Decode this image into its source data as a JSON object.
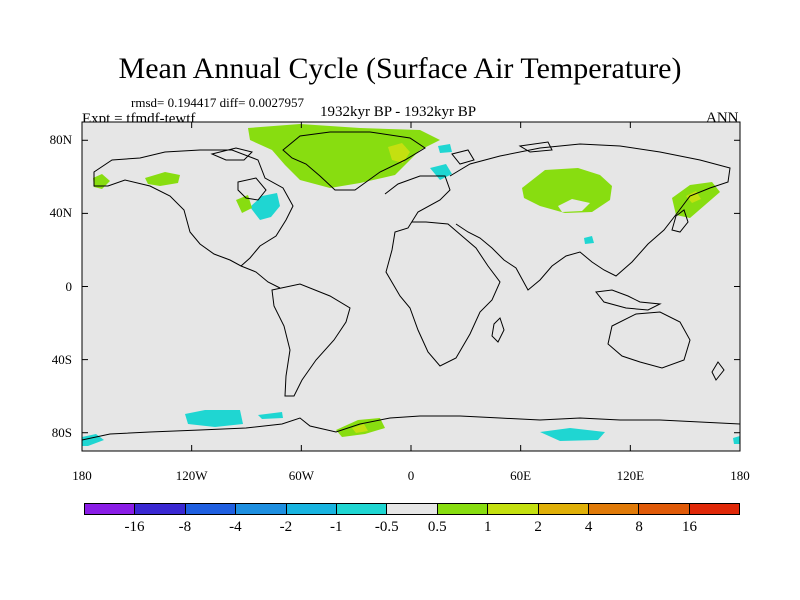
{
  "chart_data": {
    "type": "map",
    "title": "Mean Annual Cycle (Surface Air Temperature)",
    "stats": "rmsd= 0.194417 diff= 0.0027957",
    "experiment": "Expt = tfmdf-tewtf",
    "period": "1932kyr BP - 1932kyr BP",
    "season": "ANN",
    "x_ticks": [
      "180",
      "120W",
      "60W",
      "0",
      "60E",
      "120E",
      "180"
    ],
    "x_values": [
      -180,
      -120,
      -60,
      0,
      60,
      120,
      180
    ],
    "y_ticks": [
      "80N",
      "40N",
      "0",
      "40S",
      "80S"
    ],
    "y_values": [
      80,
      40,
      0,
      -40,
      -80
    ],
    "lon_range": [
      -180,
      180
    ],
    "lat_range": [
      -90,
      90
    ],
    "colorbar": {
      "labels": [
        "-16",
        "-8",
        "-4",
        "-2",
        "-1",
        "-0.5",
        "0.5",
        "1",
        "2",
        "4",
        "8",
        "16"
      ],
      "colors": [
        "#8a1de6",
        "#3a28d2",
        "#1f5fe0",
        "#1e8fe0",
        "#18b4e0",
        "#1fd6d2",
        "#e6e6e6",
        "#88dd10",
        "#c4e010",
        "#e0b008",
        "#e07a08",
        "#e05a08",
        "#e02808"
      ]
    },
    "background_color": "#e6e6e6"
  }
}
